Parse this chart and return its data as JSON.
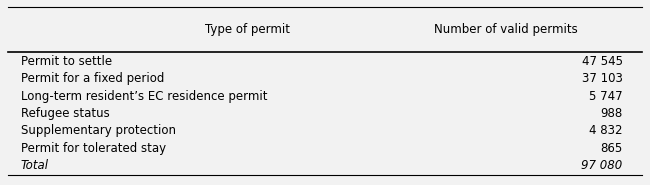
{
  "col1_header": "Type of permit",
  "col2_header": "Number of valid permits",
  "rows": [
    {
      "label": "Permit to settle",
      "value": "47 545",
      "italic": false
    },
    {
      "label": "Permit for a fixed period",
      "value": "37 103",
      "italic": false
    },
    {
      "label": "Long-term resident’s EC residence permit",
      "value": "5 747",
      "italic": false
    },
    {
      "label": "Refugee status",
      "value": "988",
      "italic": false
    },
    {
      "label": "Supplementary protection",
      "value": "4 832",
      "italic": false
    },
    {
      "label": "Permit for tolerated stay",
      "value": "865",
      "italic": false
    },
    {
      "label": "Total",
      "value": "97 080",
      "italic": true
    }
  ],
  "background_color": "#f2f2f2",
  "header_fontsize": 8.5,
  "body_fontsize": 8.5,
  "fig_width": 6.5,
  "fig_height": 1.85
}
